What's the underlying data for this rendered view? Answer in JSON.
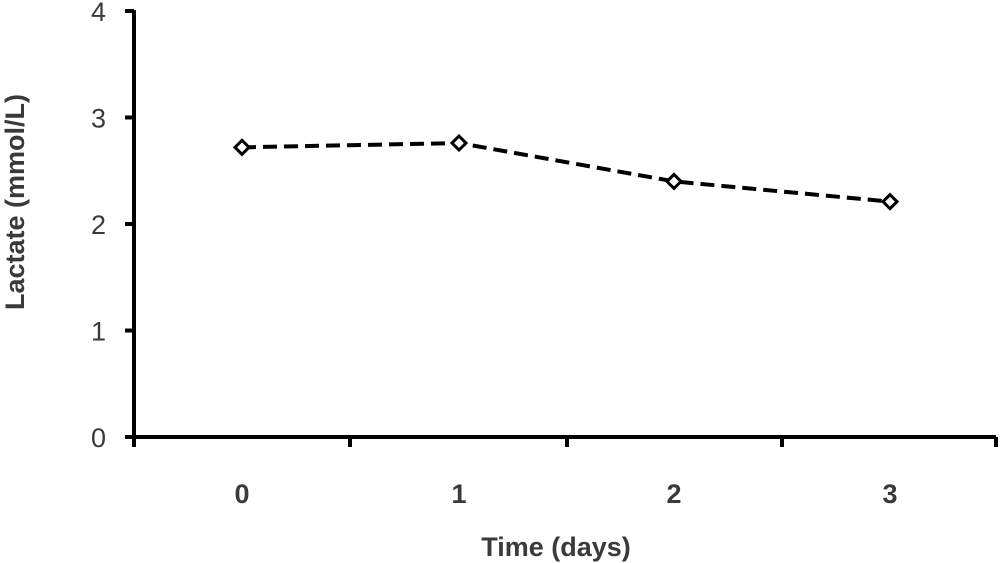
{
  "chart_data": {
    "type": "line",
    "title": "",
    "xlabel": "Time (days)",
    "ylabel": "Lactate (mmol/L)",
    "categories": [
      "0",
      "1",
      "2",
      "3"
    ],
    "series": [
      {
        "values": [
          2.72,
          2.76,
          2.4,
          2.21
        ],
        "line_style": "dashed",
        "marker": "open-diamond",
        "color": "#000000"
      }
    ],
    "ylim": [
      0,
      4
    ],
    "yticks": [
      "0",
      "1",
      "2",
      "3",
      "4"
    ],
    "grid": false,
    "legend": "none"
  }
}
